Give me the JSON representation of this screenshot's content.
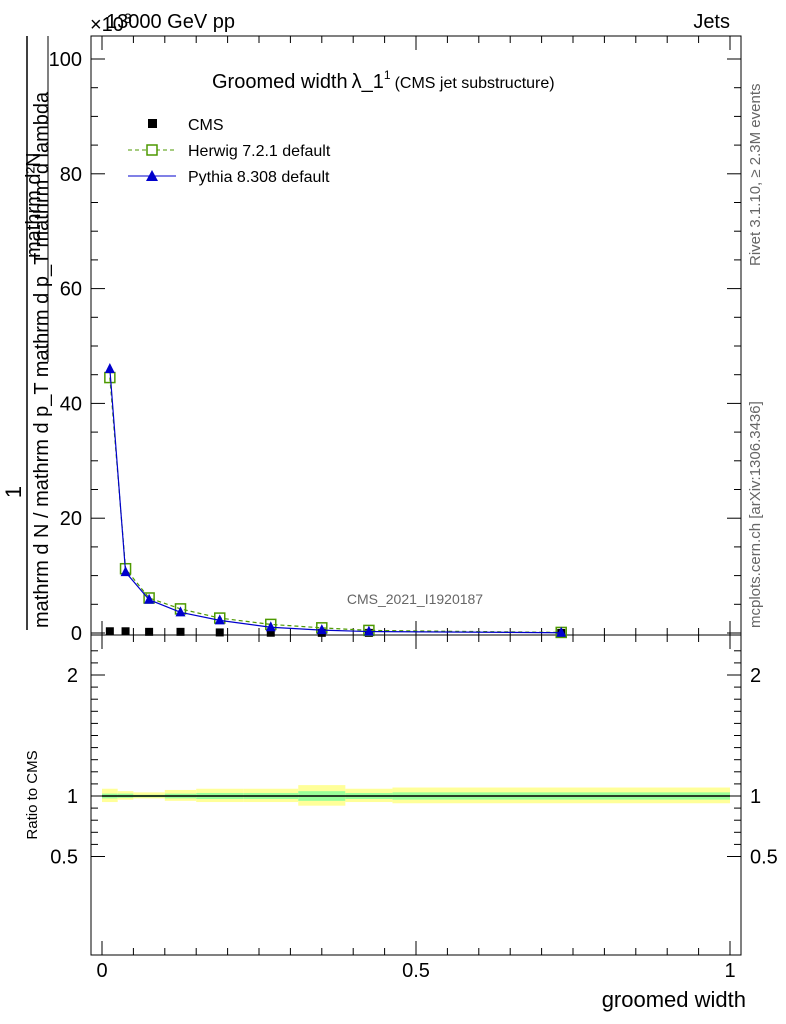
{
  "header": {
    "energy_label": "13000 GeV pp",
    "exponent_label": "×10",
    "exponent_power": "3",
    "process_label": "Jets"
  },
  "side_labels": {
    "rivet": "Rivet 3.1.10, ≥ 2.3M events",
    "mcplots": "mcplots.cern.ch [arXiv:1306.3436]"
  },
  "chart_data": [
    {
      "type": "line",
      "title": "Groomed width",
      "title_symbol": "λ_1",
      "title_superscript": "1",
      "subtitle": "(CMS jet substructure)",
      "watermark": "CMS_2021_I1920187",
      "ylabel_top": "1",
      "ylabel_numerator": "mathrm d²N",
      "ylabel_denominator": "mathrm d N / mathrm d p_T mathrm d p_T mathrm d lambda",
      "xlim": [
        0,
        1
      ],
      "ylim": [
        0,
        100
      ],
      "y_ticks": [
        0,
        20,
        40,
        60,
        80,
        100
      ],
      "y_tick_labels": [
        "0",
        "20",
        "40",
        "60",
        "80",
        "100"
      ],
      "legend_position": "top-left",
      "legend": [
        "CMS",
        "Herwig 7.2.1 default",
        "Pythia 8.308 default"
      ],
      "bin_edges": [
        0,
        0.025,
        0.05,
        0.1,
        0.15,
        0.225,
        0.3125,
        0.3875,
        0.4625,
        1.0
      ],
      "x_centers": [
        0.0125,
        0.0375,
        0.075,
        0.125,
        0.1875,
        0.26875,
        0.35,
        0.425,
        0.73125
      ],
      "series": [
        {
          "name": "CMS",
          "color": "#000000",
          "marker": "square",
          "values": [
            0.3,
            0.3,
            0.2,
            0.2,
            0.1,
            0.05,
            0.03,
            0.02,
            0.01
          ]
        },
        {
          "name": "Herwig 7.2.1 default",
          "color": "#4d9900",
          "marker": "open-square",
          "dashed": true,
          "values": [
            44.5,
            11.2,
            6.1,
            4.2,
            2.6,
            1.5,
            0.9,
            0.45,
            0.1
          ]
        },
        {
          "name": "Pythia 8.308 default",
          "color": "#0000cc",
          "marker": "triangle",
          "values": [
            46.0,
            10.6,
            5.8,
            3.6,
            2.2,
            1.0,
            0.5,
            0.25,
            0.05
          ]
        }
      ]
    },
    {
      "type": "area",
      "ylabel": "Ratio to CMS",
      "xlabel": "groomed width",
      "xlim": [
        0,
        1
      ],
      "ylim": [
        0.4,
        2.3
      ],
      "x_ticks": [
        0,
        0.5,
        1
      ],
      "x_tick_labels": [
        "0",
        "0.5",
        "1"
      ],
      "y_ticks": [
        0.5,
        1,
        2
      ],
      "y_tick_labels": [
        "0.5",
        "1",
        "2"
      ],
      "reference": 1,
      "bands": {
        "bin_edges": [
          0,
          0.025,
          0.05,
          0.1,
          0.15,
          0.225,
          0.3125,
          0.3875,
          0.4625,
          1.0
        ],
        "total_color": "#ffff99",
        "stat_color": "#99ff99",
        "total_lo": [
          0.95,
          0.97,
          0.98,
          0.96,
          0.95,
          0.95,
          0.92,
          0.95,
          0.94
        ],
        "total_hi": [
          1.06,
          1.04,
          1.03,
          1.05,
          1.06,
          1.06,
          1.09,
          1.06,
          1.07
        ],
        "stat_lo": [
          0.98,
          0.985,
          0.99,
          0.98,
          0.975,
          0.975,
          0.96,
          0.975,
          0.97
        ],
        "stat_hi": [
          1.02,
          1.02,
          1.01,
          1.02,
          1.025,
          1.025,
          1.04,
          1.025,
          1.03
        ]
      }
    }
  ]
}
